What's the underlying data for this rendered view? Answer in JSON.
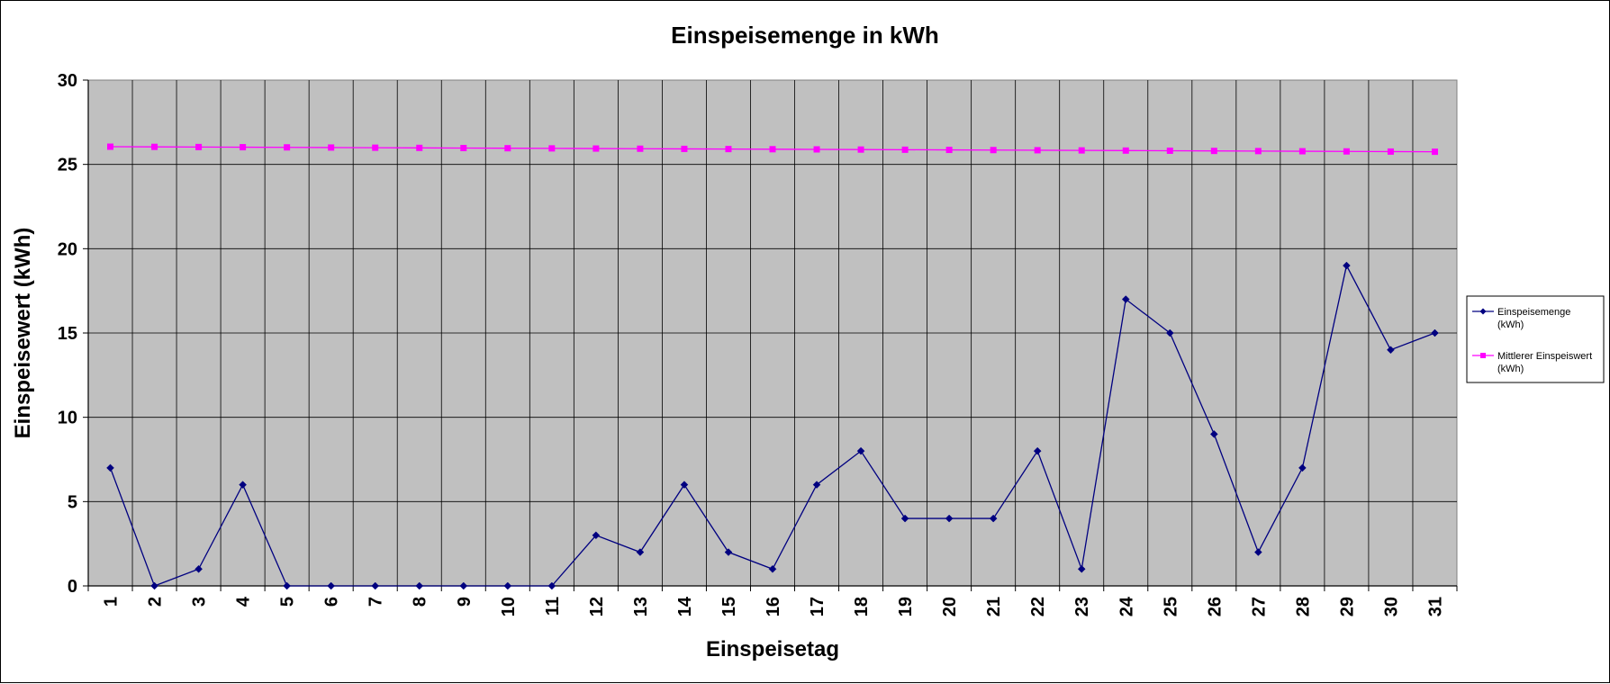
{
  "chart_data": {
    "type": "line",
    "title": "Einspeisemenge in kWh",
    "xlabel": "Einspeisetag",
    "ylabel": "Einspeisewert  (kWh)",
    "ylim": [
      0,
      30
    ],
    "yticks": [
      "0",
      "5",
      "10",
      "15",
      "20",
      "25",
      "30"
    ],
    "categories": [
      "1",
      "2",
      "3",
      "4",
      "5",
      "6",
      "7",
      "8",
      "9",
      "10",
      "11",
      "12",
      "13",
      "14",
      "15",
      "16",
      "17",
      "18",
      "19",
      "20",
      "21",
      "22",
      "23",
      "24",
      "25",
      "26",
      "27",
      "28",
      "29",
      "30",
      "31"
    ],
    "grid": true,
    "legend_position": "right",
    "plot_background": "#c0c0c0",
    "series": [
      {
        "name_lines": [
          "Einspeisemenge",
          "(kWh)"
        ],
        "color": "#000080",
        "marker": "diamond",
        "values": [
          7,
          0,
          1,
          6,
          0,
          0,
          0,
          0,
          0,
          0,
          0,
          3,
          2,
          6,
          2,
          1,
          6,
          8,
          4,
          4,
          4,
          8,
          1,
          17,
          15,
          9,
          2,
          7,
          19,
          14,
          15
        ]
      },
      {
        "name_lines": [
          "Mittlerer Einspeiswert",
          "(kWh)"
        ],
        "color": "#ff00ff",
        "marker": "square",
        "values": [
          26.05,
          26.04,
          26.03,
          26.02,
          26.01,
          26.0,
          25.99,
          25.98,
          25.97,
          25.96,
          25.95,
          25.94,
          25.93,
          25.92,
          25.91,
          25.9,
          25.89,
          25.88,
          25.87,
          25.86,
          25.85,
          25.84,
          25.83,
          25.82,
          25.81,
          25.8,
          25.79,
          25.78,
          25.77,
          25.76,
          25.75
        ]
      }
    ]
  }
}
